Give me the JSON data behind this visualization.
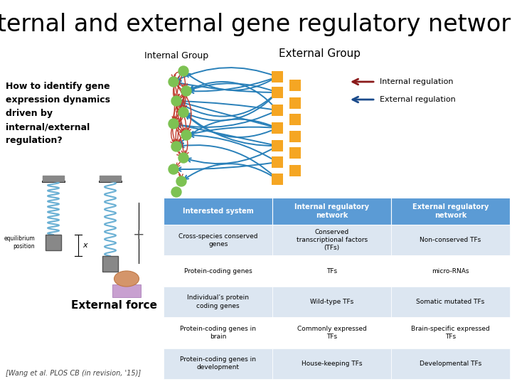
{
  "title": "Internal and external gene regulatory networks",
  "title_fontsize": 24,
  "title_color": "#000000",
  "bg_color": "#ffffff",
  "internal_group_label": "Internal Group",
  "external_group_label": "External Group",
  "left_text": "How to identify gene\nexpression dynamics\ndriven by\ninternal/external\nregulation?",
  "legend_internal": "Internal regulation",
  "legend_external": "External regulation",
  "legend_arrow_internal_color": "#8b1a1a",
  "legend_arrow_external_color": "#1a4a8b",
  "footer": "[Wang et al. PLOS CB (in revision, '15)]",
  "external_force_label": "External force",
  "table_header_bg": "#5b9bd5",
  "table_row_bg_odd": "#dce6f1",
  "table_row_bg_even": "#ffffff",
  "table_header_color": "#ffffff",
  "table_text_color": "#000000",
  "table_headers": [
    "Interested system",
    "Internal regulatory\nnetwork",
    "External regulatory\nnetwork"
  ],
  "table_rows": [
    [
      "Cross-species conserved\ngenes",
      "Conserved\ntranscriptional factors\n(TFs)",
      "Non-conserved TFs"
    ],
    [
      "Protein-coding genes",
      "TFs",
      "micro-RNAs"
    ],
    [
      "Individual’s protein\ncoding genes",
      "Wild-type TFs",
      "Somatic mutated TFs"
    ],
    [
      "Protein-coding genes in\nbrain",
      "Commonly expressed\nTFs",
      "Brain-specific expressed\nTFs"
    ],
    [
      "Protein-coding genes in\ndevelopment",
      "House-keeping TFs",
      "Developmental TFs"
    ]
  ],
  "node_color_internal": "#7dc253",
  "node_color_external": "#f5a623",
  "arrow_color_internal": "#c0392b",
  "arrow_color_external": "#2980b9",
  "spring_color": "#6ab0d4",
  "mass_color": "#808080"
}
